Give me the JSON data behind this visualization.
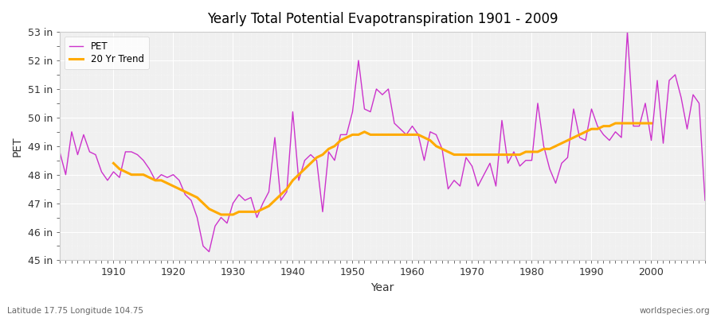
{
  "title": "Yearly Total Potential Evapotranspiration 1901 - 2009",
  "xlabel": "Year",
  "ylabel": "PET",
  "footnote_left": "Latitude 17.75 Longitude 104.75",
  "footnote_right": "worldspecies.org",
  "bg_color": "#ffffff",
  "plot_bg_color": "#f0f0f0",
  "pet_color": "#cc33cc",
  "trend_color": "#ffaa00",
  "ylim": [
    45,
    53
  ],
  "years": [
    1901,
    1902,
    1903,
    1904,
    1905,
    1906,
    1907,
    1908,
    1909,
    1910,
    1911,
    1912,
    1913,
    1914,
    1915,
    1916,
    1917,
    1918,
    1919,
    1920,
    1921,
    1922,
    1923,
    1924,
    1925,
    1926,
    1927,
    1928,
    1929,
    1930,
    1931,
    1932,
    1933,
    1934,
    1935,
    1936,
    1937,
    1938,
    1939,
    1940,
    1941,
    1942,
    1943,
    1944,
    1945,
    1946,
    1947,
    1948,
    1949,
    1950,
    1951,
    1952,
    1953,
    1954,
    1955,
    1956,
    1957,
    1958,
    1959,
    1960,
    1961,
    1962,
    1963,
    1964,
    1965,
    1966,
    1967,
    1968,
    1969,
    1970,
    1971,
    1972,
    1973,
    1974,
    1975,
    1976,
    1977,
    1978,
    1979,
    1980,
    1981,
    1982,
    1983,
    1984,
    1985,
    1986,
    1987,
    1988,
    1989,
    1990,
    1991,
    1992,
    1993,
    1994,
    1995,
    1996,
    1997,
    1998,
    1999,
    2000,
    2001,
    2002,
    2003,
    2004,
    2005,
    2006,
    2007,
    2008,
    2009
  ],
  "pet_values": [
    48.8,
    48.0,
    49.5,
    48.7,
    49.4,
    48.8,
    48.7,
    48.1,
    47.8,
    48.1,
    47.9,
    48.8,
    48.8,
    48.7,
    48.5,
    48.2,
    47.8,
    48.0,
    47.9,
    48.0,
    47.8,
    47.3,
    47.1,
    46.5,
    45.5,
    45.3,
    46.2,
    46.5,
    46.3,
    47.0,
    47.3,
    47.1,
    47.2,
    46.5,
    47.0,
    47.4,
    49.3,
    47.1,
    47.4,
    50.2,
    47.8,
    48.5,
    48.7,
    48.5,
    46.7,
    48.8,
    48.5,
    49.4,
    49.4,
    50.2,
    52.0,
    50.3,
    50.2,
    51.0,
    50.8,
    51.0,
    49.8,
    49.6,
    49.4,
    49.7,
    49.4,
    48.5,
    49.5,
    49.4,
    48.9,
    47.5,
    47.8,
    47.6,
    48.6,
    48.3,
    47.6,
    48.0,
    48.4,
    47.6,
    49.9,
    48.4,
    48.8,
    48.3,
    48.5,
    48.5,
    50.5,
    49.0,
    48.2,
    47.7,
    48.4,
    48.6,
    50.3,
    49.3,
    49.2,
    50.3,
    49.7,
    49.4,
    49.2,
    49.5,
    49.3,
    53.0,
    49.7,
    49.7,
    50.5,
    49.2,
    51.3,
    49.1,
    51.3,
    51.5,
    50.7,
    49.6,
    50.8,
    50.5,
    47.1
  ],
  "trend_values": [
    null,
    null,
    null,
    null,
    null,
    null,
    null,
    null,
    null,
    48.4,
    48.2,
    48.1,
    48.0,
    48.0,
    48.0,
    47.9,
    47.8,
    47.8,
    47.7,
    47.6,
    47.5,
    47.4,
    47.3,
    47.2,
    47.0,
    46.8,
    46.7,
    46.6,
    46.6,
    46.6,
    46.7,
    46.7,
    46.7,
    46.7,
    46.8,
    46.9,
    47.1,
    47.3,
    47.5,
    47.8,
    48.0,
    48.2,
    48.4,
    48.6,
    48.7,
    48.9,
    49.0,
    49.2,
    49.3,
    49.4,
    49.4,
    49.5,
    49.4,
    49.4,
    49.4,
    49.4,
    49.4,
    49.4,
    49.4,
    49.4,
    49.4,
    49.3,
    49.2,
    49.0,
    48.9,
    48.8,
    48.7,
    48.7,
    48.7,
    48.7,
    48.7,
    48.7,
    48.7,
    48.7,
    48.7,
    48.7,
    48.7,
    48.7,
    48.8,
    48.8,
    48.8,
    48.9,
    48.9,
    49.0,
    49.1,
    49.2,
    49.3,
    49.4,
    49.5,
    49.6,
    49.6,
    49.7,
    49.7,
    49.8,
    49.8,
    49.8,
    49.8,
    49.8,
    49.8,
    49.8,
    null,
    null,
    null,
    null,
    null,
    null,
    null,
    null,
    null
  ],
  "xticks": [
    1910,
    1920,
    1930,
    1940,
    1950,
    1960,
    1970,
    1980,
    1990,
    2000
  ],
  "yticks": [
    45,
    46,
    47,
    48,
    49,
    50,
    51,
    52,
    53
  ]
}
